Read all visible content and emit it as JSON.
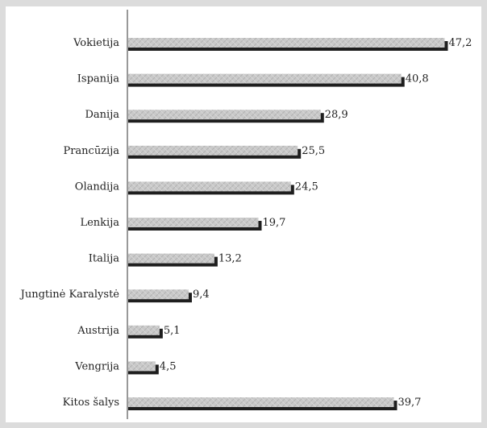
{
  "chart_data": {
    "type": "bar",
    "orientation": "horizontal",
    "categories": [
      "Vokietija",
      "Ispanija",
      "Danija",
      "Prancūzija",
      "Olandija",
      "Lenkija",
      "Italija",
      "Jungtinė Karalystė",
      "Austrija",
      "Vengrija",
      "Kitos šalys"
    ],
    "values": [
      47.2,
      40.8,
      28.9,
      25.5,
      24.5,
      19.7,
      13.2,
      9.4,
      5.1,
      4.5,
      39.7
    ],
    "value_labels": [
      "47,2",
      "40,8",
      "28,9",
      "25,5",
      "24,5",
      "19,7",
      "13,2",
      "9,4",
      "5,1",
      "4,5",
      "39,7"
    ],
    "title": "",
    "xlabel": "",
    "ylabel": "",
    "xlim": [
      0,
      50
    ],
    "grid": false,
    "legend": "none",
    "bar_fill_color": "#c8c8c8",
    "bar_shadow_color": "#1e1e1e",
    "axis_color": "#333333"
  }
}
